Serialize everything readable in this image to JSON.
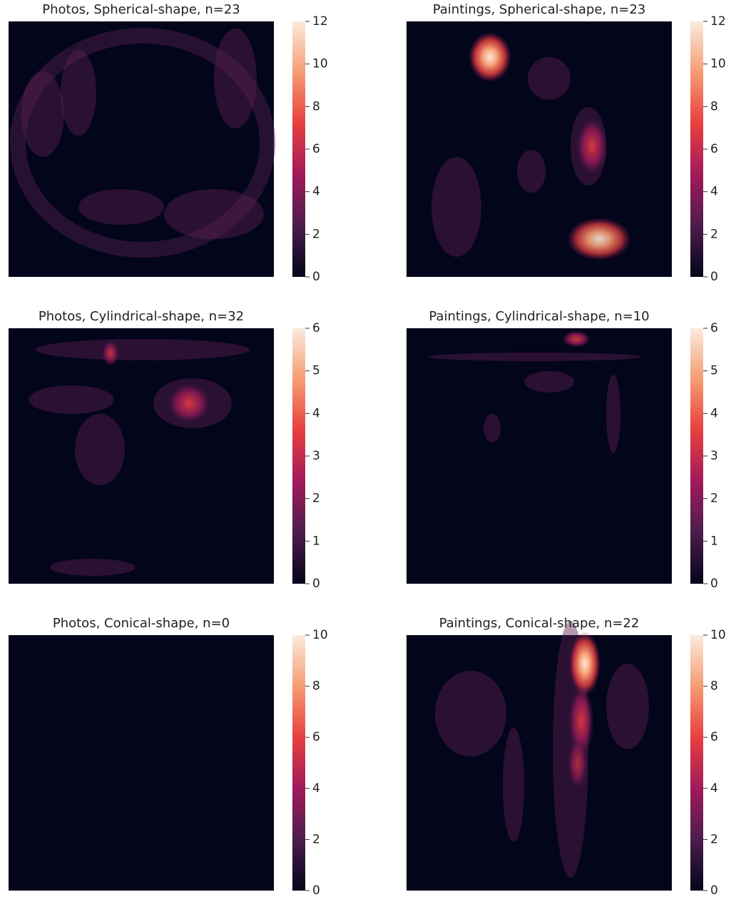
{
  "chart_data": [
    {
      "type": "heatmap",
      "title": "Photos, Spherical-shape, n=23",
      "clim": [
        0,
        12
      ],
      "cticks": [
        0,
        2,
        4,
        6,
        8,
        10,
        12
      ],
      "colorscale": [
        "#03051a",
        "#4c1d4b",
        "#a11a5b",
        "#e83f3f",
        "#f69c73",
        "#faebdd"
      ]
    },
    {
      "type": "heatmap",
      "title": "Paintings, Spherical-shape, n=23",
      "clim": [
        0,
        12
      ],
      "cticks": [
        0,
        2,
        4,
        6,
        8,
        10,
        12
      ],
      "colorscale": [
        "#03051a",
        "#4c1d4b",
        "#a11a5b",
        "#e83f3f",
        "#f69c73",
        "#faebdd"
      ]
    },
    {
      "type": "heatmap",
      "title": "Photos, Cylindrical-shape, n=32",
      "clim": [
        0,
        6
      ],
      "cticks": [
        0,
        1,
        2,
        3,
        4,
        5,
        6
      ],
      "colorscale": [
        "#03051a",
        "#4c1d4b",
        "#a11a5b",
        "#e83f3f",
        "#f69c73",
        "#faebdd"
      ]
    },
    {
      "type": "heatmap",
      "title": "Paintings, Cylindrical-shape, n=10",
      "clim": [
        0,
        6
      ],
      "cticks": [
        0,
        1,
        2,
        3,
        4,
        5,
        6
      ],
      "colorscale": [
        "#03051a",
        "#4c1d4b",
        "#a11a5b",
        "#e83f3f",
        "#f69c73",
        "#faebdd"
      ]
    },
    {
      "type": "heatmap",
      "title": "Photos, Conical-shape, n=0",
      "clim": [
        0,
        10
      ],
      "cticks": [
        0,
        2,
        4,
        6,
        8,
        10
      ],
      "colorscale": [
        "#03051a",
        "#4c1d4b",
        "#a11a5b",
        "#e83f3f",
        "#f69c73",
        "#faebdd"
      ]
    },
    {
      "type": "heatmap",
      "title": "Paintings, Conical-shape, n=22",
      "clim": [
        0,
        10
      ],
      "cticks": [
        0,
        2,
        4,
        6,
        8,
        10
      ],
      "colorscale": [
        "#03051a",
        "#4c1d4b",
        "#a11a5b",
        "#e83f3f",
        "#f69c73",
        "#faebdd"
      ]
    }
  ]
}
